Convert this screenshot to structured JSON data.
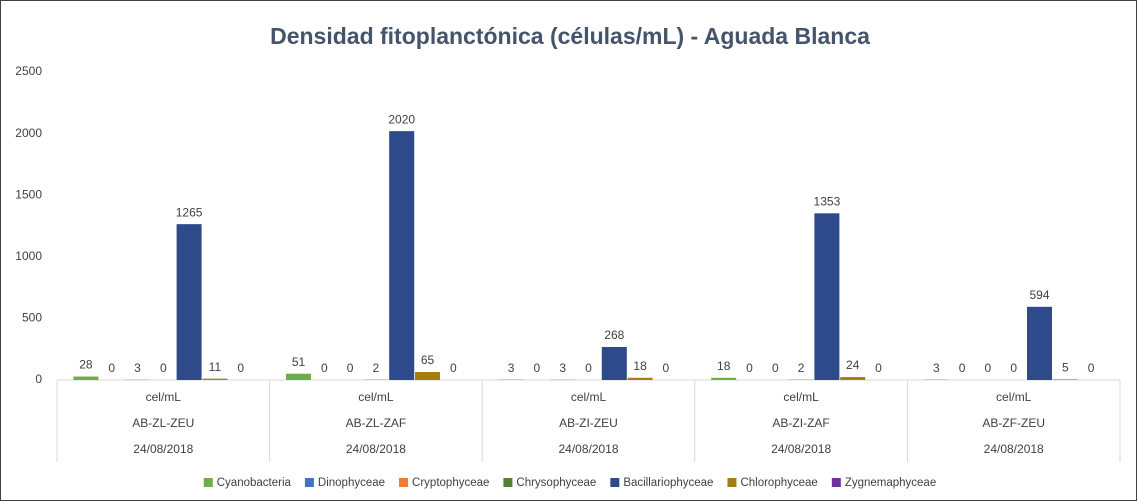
{
  "chart_data": {
    "type": "bar",
    "title": "Densidad fitoplanctónica (células/mL) - Aguada Blanca",
    "categories": [
      [
        "cel/mL",
        "AB-ZL-ZEU",
        "24/08/2018"
      ],
      [
        "cel/mL",
        "AB-ZL-ZAF",
        "24/08/2018"
      ],
      [
        "cel/mL",
        "AB-ZI-ZEU",
        "24/08/2018"
      ],
      [
        "cel/mL",
        "AB-ZI-ZAF",
        "24/08/2018"
      ],
      [
        "cel/mL",
        "AB-ZF-ZEU",
        "24/08/2018"
      ]
    ],
    "series": [
      {
        "name": "Cyanobacteria",
        "color": "#70ad47",
        "values": [
          28,
          51,
          3,
          18,
          3
        ]
      },
      {
        "name": "Dinophyceae",
        "color": "#4472c4",
        "values": [
          0,
          0,
          0,
          0,
          0
        ]
      },
      {
        "name": "Cryptophyceae",
        "color": "#ed7d31",
        "values": [
          3,
          0,
          3,
          0,
          0
        ]
      },
      {
        "name": "Chrysophyceae",
        "color": "#548235",
        "values": [
          0,
          2,
          0,
          2,
          0
        ]
      },
      {
        "name": "Bacillariophyceae",
        "color": "#2f4a8a",
        "values": [
          1265,
          2020,
          268,
          1353,
          594
        ]
      },
      {
        "name": "Chlorophyceae",
        "color": "#a57e12",
        "values": [
          11,
          65,
          18,
          24,
          5
        ]
      },
      {
        "name": "Zygnemaphyceae",
        "color": "#7030a0",
        "values": [
          0,
          0,
          0,
          0,
          0
        ]
      }
    ],
    "ylim": [
      0,
      2500
    ],
    "yticks": [
      0,
      500,
      1000,
      1500,
      2000,
      2500
    ],
    "grid": false,
    "legend": "bottom"
  }
}
